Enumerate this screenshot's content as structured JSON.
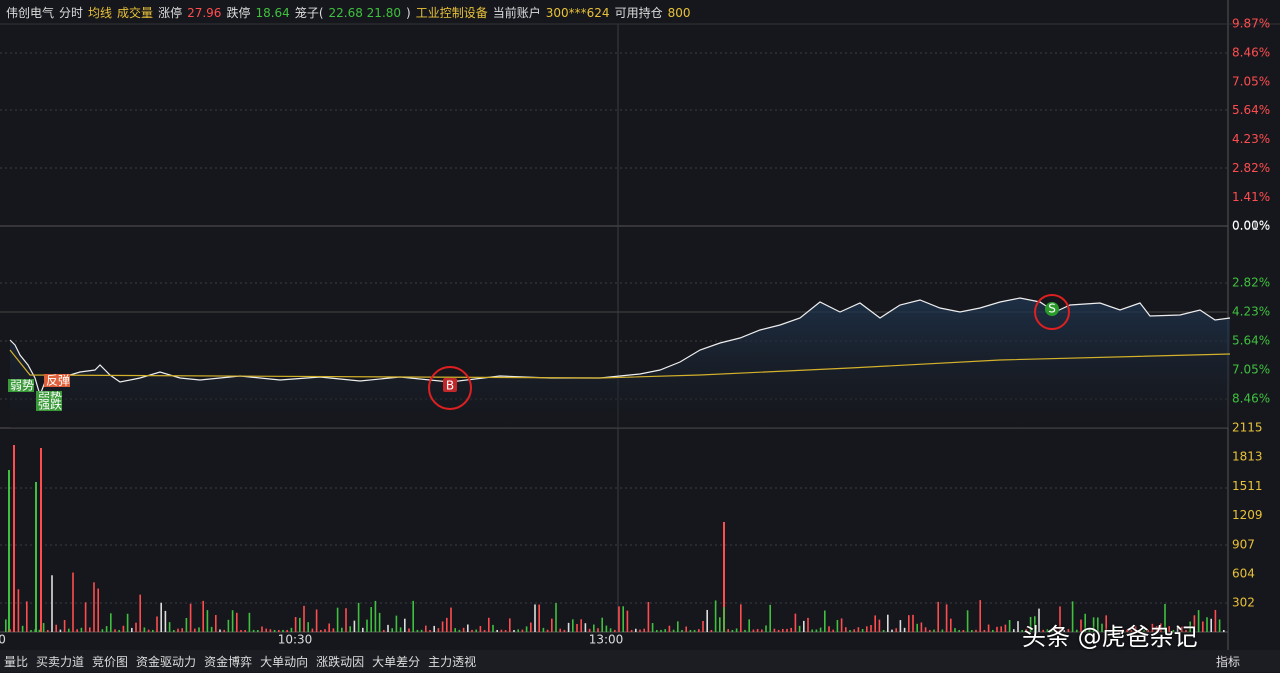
{
  "header": {
    "items": [
      {
        "text": "伟创电气",
        "color": "#ddd"
      },
      {
        "text": "分时",
        "color": "#ddd"
      },
      {
        "text": "均线",
        "color": "#e8c13a"
      },
      {
        "text": "成交量",
        "color": "#e8c13a"
      },
      {
        "text": "涨停",
        "color": "#ddd"
      },
      {
        "text": "27.96",
        "color": "#ff4d4f"
      },
      {
        "text": "跌停",
        "color": "#ddd"
      },
      {
        "text": "18.64",
        "color": "#3fc13f"
      },
      {
        "text": "笼子(",
        "color": "#ddd"
      },
      {
        "text": "22.68 21.80",
        "color": "#3fc13f"
      },
      {
        "text": ")",
        "color": "#ddd"
      },
      {
        "text": "工业控制设备",
        "color": "#e8c13a"
      },
      {
        "text": "当前账户",
        "color": "#ddd"
      },
      {
        "text": "300***624",
        "color": "#e8c13a"
      },
      {
        "text": "可用持仓",
        "color": "#ddd"
      },
      {
        "text": "800",
        "color": "#e8c13a"
      }
    ]
  },
  "right_axis": {
    "upper": [
      "9.87%",
      "8.46%",
      "7.05%",
      "5.64%",
      "4.23%",
      "2.82%",
      "1.41%",
      "0.01%"
    ],
    "zero": "0.00%",
    "lower": [
      "2.82%",
      "4.23%",
      "5.64%",
      "7.05%",
      "8.46%"
    ],
    "volume": [
      "2115",
      "1813",
      "1511",
      "1209",
      "907",
      "604",
      "302"
    ]
  },
  "time_axis": [
    "0",
    "10:30",
    "13:00"
  ],
  "markers": {
    "buy": "B",
    "sell": "S",
    "tags": [
      "弱势",
      "反弹",
      "弱势",
      "强跌"
    ]
  },
  "tabs": [
    "量比",
    "买卖力道",
    "竞价图",
    "资金驱动力",
    "资金博弈",
    "大单动向",
    "涨跌动因",
    "大单差分",
    "主力透视"
  ],
  "indicator": "指标",
  "watermark": "头条 @虎爸杂记"
}
